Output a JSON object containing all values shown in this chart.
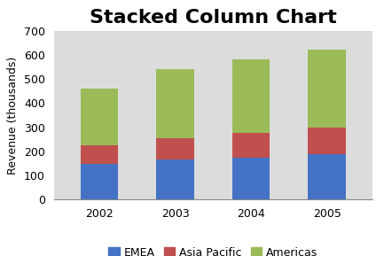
{
  "title": "Stacked Column Chart",
  "ylabel": "Revenue (thousands)",
  "categories": [
    "2002",
    "2003",
    "2004",
    "2005"
  ],
  "series": {
    "EMEA": [
      150,
      165,
      175,
      190
    ],
    "Asia Pacific": [
      75,
      90,
      100,
      110
    ],
    "Americas": [
      235,
      285,
      305,
      320
    ]
  },
  "colors": {
    "EMEA": "#4472C4",
    "Asia Pacific": "#C0504D",
    "Americas": "#9BBB59"
  },
  "ylim": [
    0,
    700
  ],
  "yticks": [
    0,
    100,
    200,
    300,
    400,
    500,
    600,
    700
  ],
  "bar_width": 0.5,
  "title_fontsize": 16,
  "axis_fontsize": 9,
  "legend_fontsize": 9,
  "bg_color": "#FFFFFF",
  "plot_bg_color": "#DCDCDC"
}
